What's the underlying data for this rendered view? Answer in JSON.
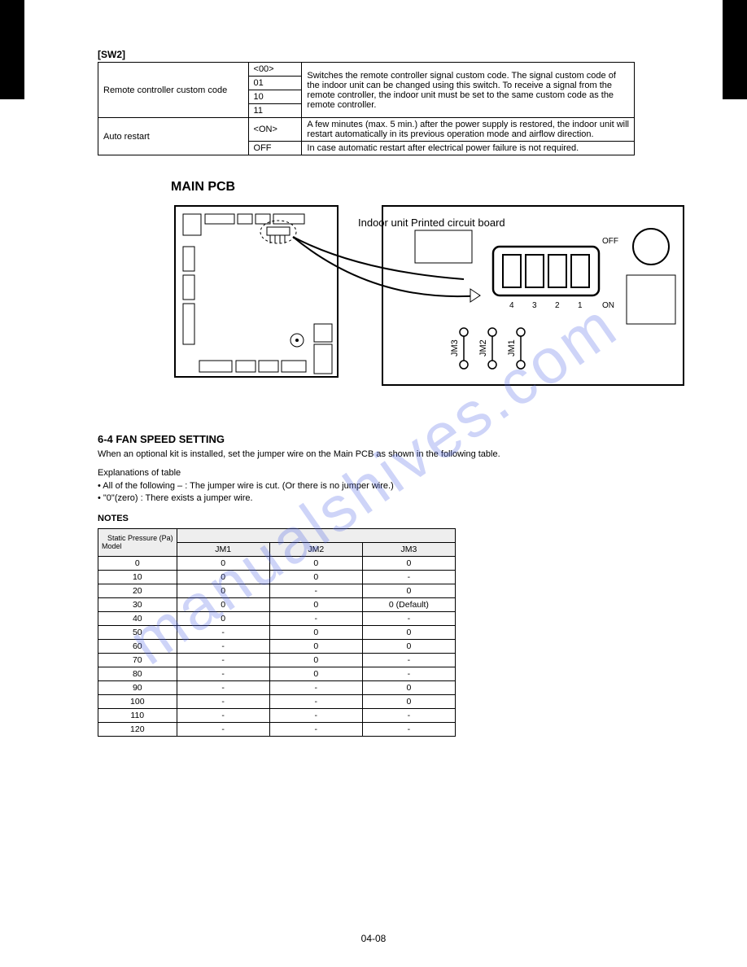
{
  "watermark": "manualshives.com",
  "page_num": "04-08",
  "sw_label": "[SW2]",
  "sw": {
    "rows": [
      {
        "c1": "Remote controller custom code",
        "c2": "<00>",
        "c3": "Switches the remote controller signal custom code. The signal custom code of the indoor unit can be changed using this switch. To receive a signal from the remote controller, the indoor unit must be set to the same custom code as the remote controller."
      },
      {
        "c1_cont": true,
        "c2": "01",
        "c3_cont": true
      },
      {
        "c1_cont": true,
        "c2": "10",
        "c3_cont": true
      },
      {
        "c1_cont": true,
        "c2": "11",
        "c3_cont": true
      },
      {
        "c1": "Auto restart",
        "c2": "<ON>",
        "c3": "A few minutes (max. 5 min.) after the power supply is restored, the indoor unit will restart automatically in its previous operation mode and airflow direction."
      },
      {
        "c1_cont": true,
        "c2": "OFF",
        "c3": "In case automatic restart after electrical power failure is not required."
      }
    ]
  },
  "pcb_title": "MAIN PCB",
  "diagram": {
    "box_stroke": "#000",
    "box_fill": "#fff",
    "label": "Indoor unit Printed circuit board",
    "dip_labels": [
      "4",
      "3",
      "2",
      "1"
    ],
    "off": "OFF",
    "on": "ON",
    "jm": [
      "JM3",
      "JM2",
      "JM1"
    ]
  },
  "fs": {
    "title": "6-4 FAN SPEED SETTING",
    "para": "When an optional kit is installed, set the jumper wire on the Main PCB as shown in the following table.",
    "explain": "Explanations of table\n• All of the following – : The jumper wire is cut. (Or there is no jumper wire.)\n• \"0\"(zero) : There exists a jumper wire.",
    "note": "NOTES",
    "header_top": "Static Pressure (Pa)",
    "header_side": "Model",
    "cols": [
      "JM1",
      "JM2",
      "JM3"
    ],
    "rows": [
      {
        "m": "0",
        "v": [
          "0",
          "0",
          "0"
        ]
      },
      {
        "m": "10",
        "v": [
          "0",
          "0",
          "-"
        ]
      },
      {
        "m": "20",
        "v": [
          "0",
          "-",
          "0"
        ]
      },
      {
        "m": "30",
        "v": [
          "0",
          "0",
          "0 (Default)"
        ],
        "span": 3
      },
      {
        "m": "40",
        "v": [
          "0",
          "-",
          "-"
        ]
      },
      {
        "m": "50",
        "v": [
          "-",
          "0",
          "0"
        ]
      },
      {
        "m": "60",
        "v": [
          "-",
          "0",
          "0"
        ]
      },
      {
        "m": "70",
        "v": [
          "-",
          "0",
          "-"
        ]
      },
      {
        "m": "80",
        "v": [
          "-",
          "0",
          "-"
        ]
      },
      {
        "m": "90",
        "v": [
          "-",
          "-",
          "0"
        ]
      },
      {
        "m": "100",
        "v": [
          "-",
          "-",
          "0"
        ]
      },
      {
        "m": "110",
        "v": [
          "-",
          "-",
          "-"
        ]
      },
      {
        "m": "120",
        "v": [
          "-",
          "-",
          "-"
        ]
      }
    ]
  }
}
